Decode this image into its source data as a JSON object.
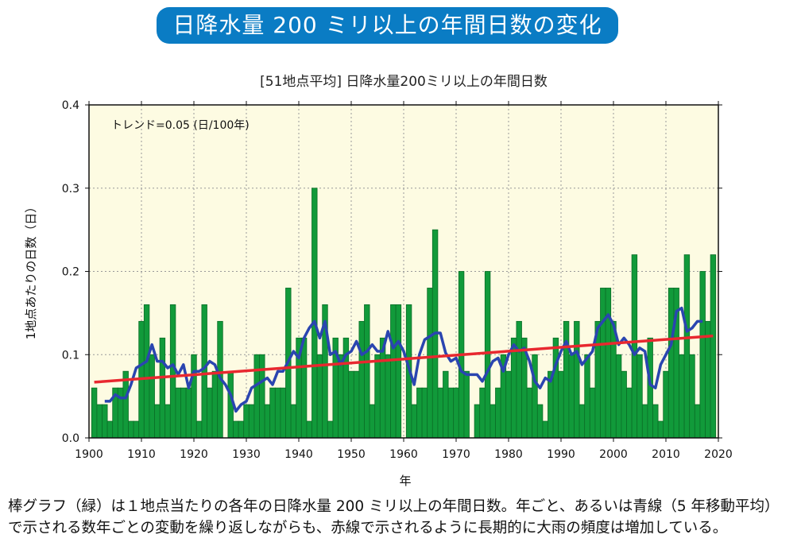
{
  "banner_title": "日降水量 200 ミリ以上の年間日数の変化",
  "caption_lines": [
    "棒グラフ（緑）は１地点当たりの各年の日降水量 200 ミリ以上の年間日数。年ごと、あるいは青線（5 年移動平均）",
    "で示される数年ごとの変動を繰り返しながらも、赤線で示されるように長期的に大雨の頻度は増加している。"
  ],
  "chart_data": {
    "type": "bar",
    "title": "[51地点平均] 日降水量200ミリ以上の年間日数",
    "annotation": "トレンド=0.05 (日/100年)",
    "xlabel": "年",
    "ylabel": "1地点あたりの日数（日）",
    "xlim": [
      1900,
      2020
    ],
    "ylim": [
      0,
      0.4
    ],
    "x_ticks": [
      "1900",
      "1910",
      "1920",
      "1930",
      "1940",
      "1950",
      "1960",
      "1970",
      "1980",
      "1990",
      "2000",
      "2010",
      "2020"
    ],
    "y_ticks": [
      "0.0",
      "0.1",
      "0.2",
      "0.3",
      "0.4"
    ],
    "grid": true,
    "years_start": 1901,
    "values": [
      0.06,
      0.04,
      0.04,
      0.02,
      0.06,
      0.06,
      0.08,
      0.02,
      0.02,
      0.14,
      0.16,
      0.1,
      0.04,
      0.12,
      0.04,
      0.16,
      0.06,
      0.06,
      0.06,
      0.1,
      0.02,
      0.16,
      0.06,
      0.08,
      0.14,
      0.0,
      0.08,
      0.02,
      0.02,
      0.04,
      0.04,
      0.1,
      0.1,
      0.04,
      0.06,
      0.06,
      0.06,
      0.18,
      0.04,
      0.12,
      0.12,
      0.02,
      0.3,
      0.1,
      0.16,
      0.02,
      0.12,
      0.1,
      0.12,
      0.08,
      0.08,
      0.14,
      0.16,
      0.04,
      0.1,
      0.12,
      0.1,
      0.16,
      0.16,
      0.0,
      0.16,
      0.04,
      0.06,
      0.06,
      0.18,
      0.25,
      0.06,
      0.08,
      0.06,
      0.06,
      0.2,
      0.08,
      0.0,
      0.04,
      0.06,
      0.2,
      0.04,
      0.06,
      0.1,
      0.08,
      0.12,
      0.14,
      0.12,
      0.06,
      0.1,
      0.04,
      0.02,
      0.08,
      0.12,
      0.08,
      0.14,
      0.1,
      0.14,
      0.04,
      0.1,
      0.06,
      0.14,
      0.18,
      0.18,
      0.14,
      0.1,
      0.08,
      0.06,
      0.22,
      0.1,
      0.04,
      0.12,
      0.04,
      0.02,
      0.08,
      0.18,
      0.18,
      0.1,
      0.22,
      0.1,
      0.04,
      0.2,
      0.14,
      0.22
    ],
    "moving_average_window": 5,
    "trend_per_100yr": 0.05,
    "colors": {
      "bars": "#119a3a",
      "bar_edge": "#0b6e27",
      "moving_average": "#2a45b0",
      "trend": "#e8282f",
      "plot_bg": "#fdfbe2",
      "banner": "#0a7cc4"
    }
  }
}
